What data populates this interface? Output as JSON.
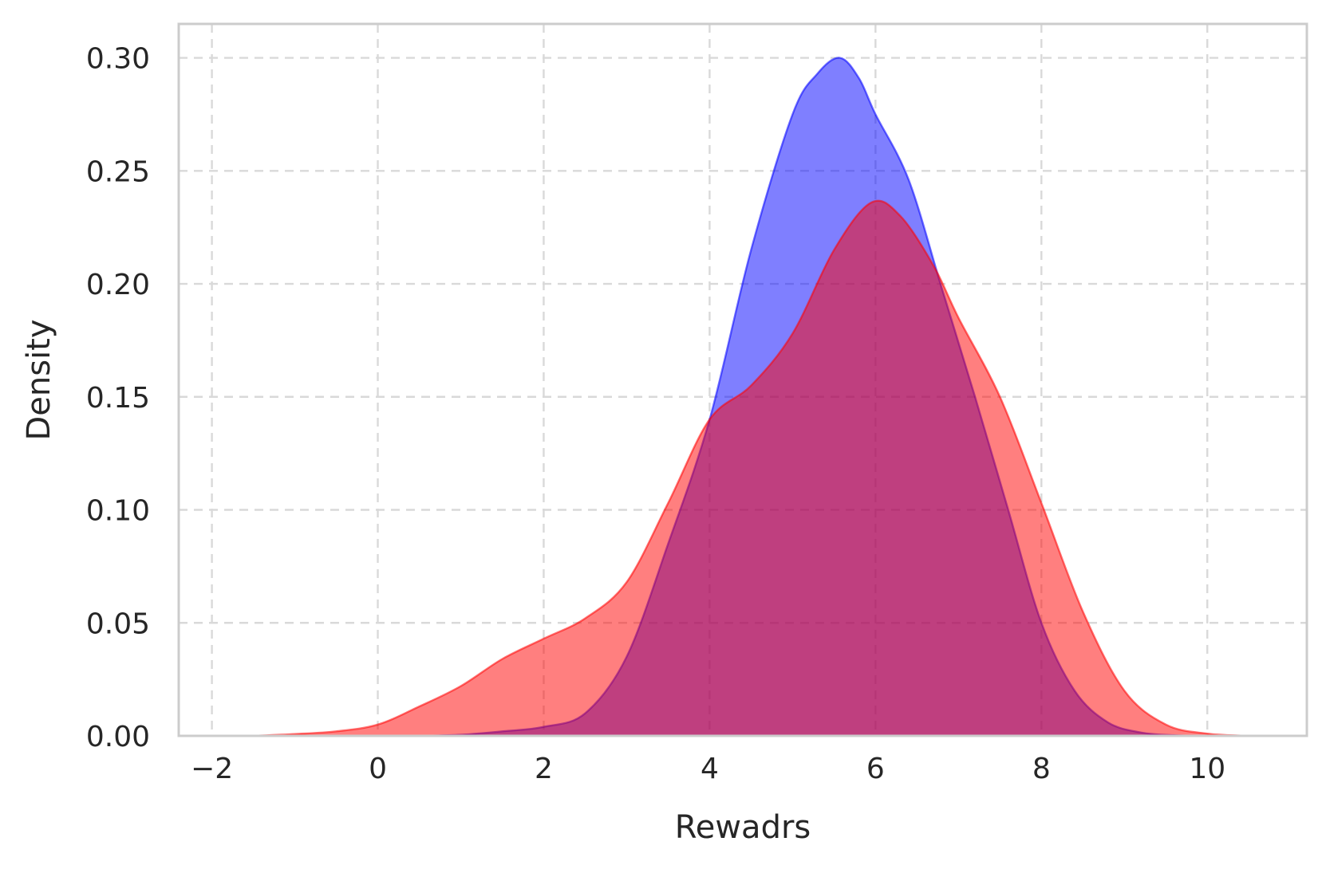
{
  "chart_data": {
    "type": "area",
    "title": "",
    "xlabel": "Rewadrs",
    "ylabel": "Density",
    "xlim": [
      -2.4,
      11.2
    ],
    "ylim": [
      0,
      0.315
    ],
    "x_ticks": [
      -2,
      0,
      2,
      4,
      6,
      8,
      10
    ],
    "x_tick_labels": [
      "−2",
      "0",
      "2",
      "4",
      "6",
      "8",
      "10"
    ],
    "y_ticks": [
      0.0,
      0.05,
      0.1,
      0.15,
      0.2,
      0.25,
      0.3
    ],
    "y_tick_labels": [
      "0.00",
      "0.05",
      "0.10",
      "0.15",
      "0.20",
      "0.25",
      "0.30"
    ],
    "grid": true,
    "legend": "none",
    "series": [
      {
        "color": "#0000ff",
        "opacity": 0.5,
        "x": [
          0.5,
          1.0,
          1.5,
          2.0,
          2.5,
          3.0,
          3.5,
          4.0,
          4.5,
          5.0,
          5.3,
          5.57,
          5.8,
          6.0,
          6.4,
          6.8,
          7.2,
          7.6,
          8.0,
          8.4,
          8.8,
          9.2,
          9.6,
          10.0
        ],
        "y": [
          0.0,
          0.0005,
          0.002,
          0.004,
          0.01,
          0.035,
          0.085,
          0.14,
          0.215,
          0.275,
          0.293,
          0.3,
          0.291,
          0.275,
          0.246,
          0.198,
          0.15,
          0.1,
          0.05,
          0.02,
          0.006,
          0.0015,
          0.0003,
          0.0
        ]
      },
      {
        "color": "#ff0000",
        "opacity": 0.5,
        "x": [
          -1.5,
          -1.0,
          -0.5,
          0.0,
          0.5,
          1.0,
          1.5,
          2.0,
          2.5,
          3.0,
          3.5,
          4.0,
          4.5,
          5.0,
          5.5,
          5.95,
          6.3,
          6.7,
          7.0,
          7.5,
          8.0,
          8.5,
          9.0,
          9.5,
          10.0,
          10.5
        ],
        "y": [
          0.0,
          0.0008,
          0.002,
          0.005,
          0.013,
          0.022,
          0.034,
          0.043,
          0.052,
          0.068,
          0.103,
          0.14,
          0.155,
          0.178,
          0.215,
          0.236,
          0.23,
          0.208,
          0.185,
          0.15,
          0.103,
          0.055,
          0.02,
          0.005,
          0.001,
          0.0
        ]
      }
    ]
  }
}
